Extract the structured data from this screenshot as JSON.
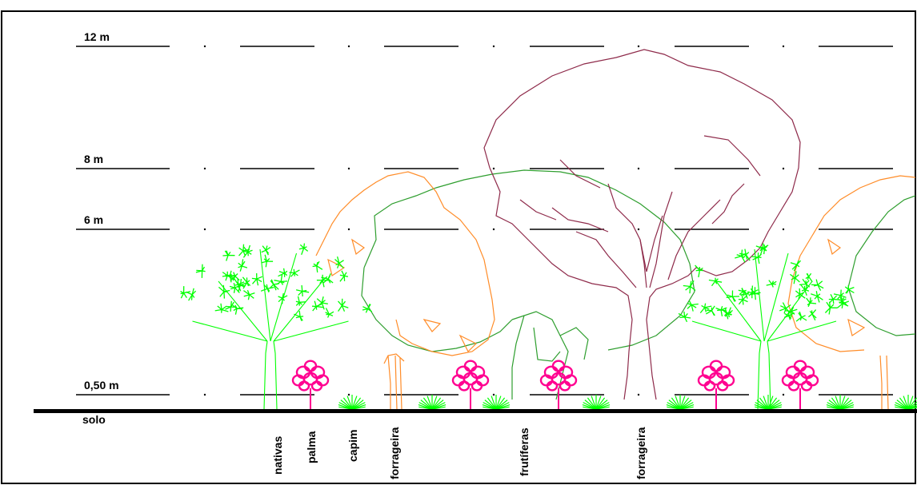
{
  "levels": [
    {
      "label": "12 m",
      "height_m": 12
    },
    {
      "label": "8 m",
      "height_m": 8
    },
    {
      "label": "6 m",
      "height_m": 6
    },
    {
      "label": "0,50 m",
      "height_m": 0.5
    }
  ],
  "ground_label": "solo",
  "species_labels": [
    "nativas",
    "palma",
    "capim",
    "forrageira",
    "frutíferas",
    "forrageira"
  ],
  "colors": {
    "nativas": "#00ff00",
    "palma": "#ff0090",
    "capim": "#00ff00",
    "forrageira_shrub": "#ff8c28",
    "frutiferas": "#2e9e2e",
    "forrageira_tree": "#8e2a4a",
    "ground": "#000000",
    "level_lines": "#000000"
  }
}
